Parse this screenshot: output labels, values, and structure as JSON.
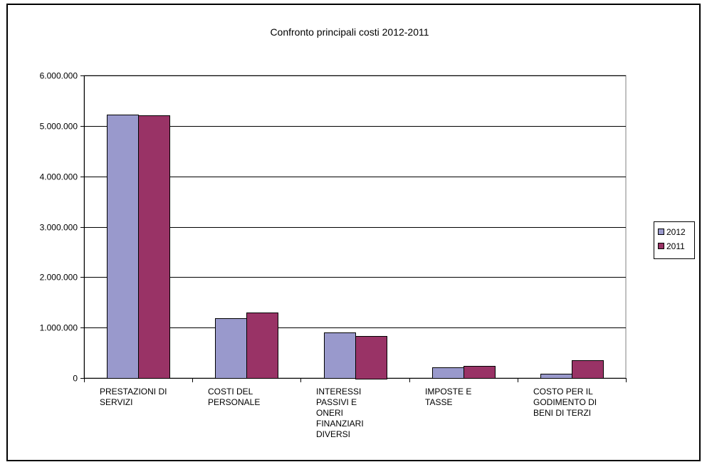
{
  "chart_data": {
    "type": "bar",
    "title": "Confronto principali costi 2012-2011",
    "categories": [
      [
        "PRESTAZIONI DI",
        "SERVIZI"
      ],
      [
        "COSTI DEL",
        "PERSONALE"
      ],
      [
        "INTERESSI",
        "PASSIVI E",
        "ONERI",
        "FINANZIARI",
        "DIVERSI"
      ],
      [
        "IMPOSTE E",
        "TASSE"
      ],
      [
        "COSTO PER IL",
        "GODIMENTO DI",
        "BENI DI TERZI"
      ]
    ],
    "series": [
      {
        "name": "2012",
        "color": "#9999CC",
        "values": [
          5230000,
          1190000,
          910000,
          210000,
          90000
        ]
      },
      {
        "name": "2011",
        "color": "#993366",
        "values": [
          5210000,
          1300000,
          840000,
          240000,
          350000
        ]
      }
    ],
    "ylim": [
      0,
      6000000
    ],
    "yticks": [
      0,
      1000000,
      2000000,
      3000000,
      4000000,
      5000000,
      6000000
    ],
    "ytick_labels": [
      "0",
      "1.000.000",
      "2.000.000",
      "3.000.000",
      "4.000.000",
      "5.000.000",
      "6.000.000"
    ],
    "grid": true,
    "legend_position": "right"
  }
}
